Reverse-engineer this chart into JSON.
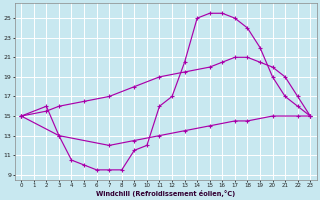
{
  "background_color": "#c8e8f0",
  "grid_color": "#b0d8e8",
  "line_color": "#aa00aa",
  "xlabel": "Windchill (Refroidissement éolien,°C)",
  "xlim": [
    -0.5,
    23.5
  ],
  "ylim": [
    8.5,
    26.5
  ],
  "xticks": [
    0,
    1,
    2,
    3,
    4,
    5,
    6,
    7,
    8,
    9,
    10,
    11,
    12,
    13,
    14,
    15,
    16,
    17,
    18,
    19,
    20,
    21,
    22,
    23
  ],
  "yticks": [
    9,
    11,
    13,
    15,
    17,
    19,
    21,
    23,
    25
  ],
  "series": [
    {
      "x": [
        0,
        2,
        3,
        5,
        7,
        9,
        11,
        13,
        15,
        16,
        17,
        18,
        19,
        20,
        21,
        22,
        23
      ],
      "y": [
        15,
        15.5,
        16,
        16.5,
        17,
        18,
        19,
        19.5,
        20,
        20.5,
        21,
        21,
        20.5,
        20,
        19,
        17,
        15
      ]
    },
    {
      "x": [
        0,
        2,
        3,
        4,
        5,
        6,
        7,
        8,
        9,
        10,
        11,
        12,
        13,
        14,
        15,
        16,
        17,
        18,
        19,
        20,
        21,
        22,
        23
      ],
      "y": [
        15,
        16,
        13,
        10.5,
        10,
        9.5,
        9.5,
        9.5,
        11.5,
        12,
        16,
        17,
        20.5,
        25,
        25.5,
        25.5,
        25,
        24,
        22,
        19,
        17,
        16,
        15
      ]
    },
    {
      "x": [
        0,
        3,
        7,
        9,
        11,
        13,
        15,
        17,
        18,
        20,
        22,
        23
      ],
      "y": [
        15,
        13,
        12,
        12.5,
        13,
        13.5,
        14,
        14.5,
        14.5,
        15,
        15,
        15
      ]
    }
  ]
}
